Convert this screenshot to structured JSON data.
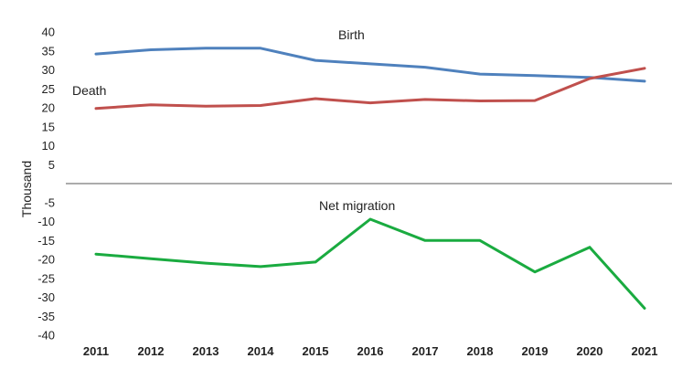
{
  "chart_data": {
    "type": "line",
    "ylabel": "Thousand",
    "x": [
      "2011",
      "2012",
      "2013",
      "2014",
      "2015",
      "2016",
      "2017",
      "2018",
      "2019",
      "2020",
      "2021"
    ],
    "ylim": [
      -40,
      40
    ],
    "yticks": [
      "40",
      "35",
      "30",
      "25",
      "20",
      "15",
      "10",
      "5",
      "-5",
      "-10",
      "-15",
      "-20",
      "-25",
      "-30",
      "-35",
      "-40"
    ],
    "series": [
      {
        "name": "Birth",
        "color": "#4f81bd",
        "values": [
          34.2,
          35.3,
          35.7,
          35.7,
          32.5,
          31.6,
          30.7,
          28.9,
          28.5,
          28.0,
          27.0
        ]
      },
      {
        "name": "Death",
        "color": "#c0504d",
        "values": [
          19.8,
          20.8,
          20.4,
          20.6,
          22.4,
          21.3,
          22.2,
          21.8,
          21.9,
          27.7,
          30.4
        ]
      },
      {
        "name": "Net migration",
        "color": "#1aab40",
        "values": [
          -18.6,
          -19.8,
          -21.0,
          -21.9,
          -20.7,
          -9.4,
          -15.0,
          -15.0,
          -23.3,
          -16.8,
          -32.9
        ]
      }
    ],
    "annotations": [
      {
        "text": "Birth",
        "series": "Birth"
      },
      {
        "text": "Death",
        "series": "Death"
      },
      {
        "text": "Net migration",
        "series": "Net migration"
      }
    ]
  }
}
